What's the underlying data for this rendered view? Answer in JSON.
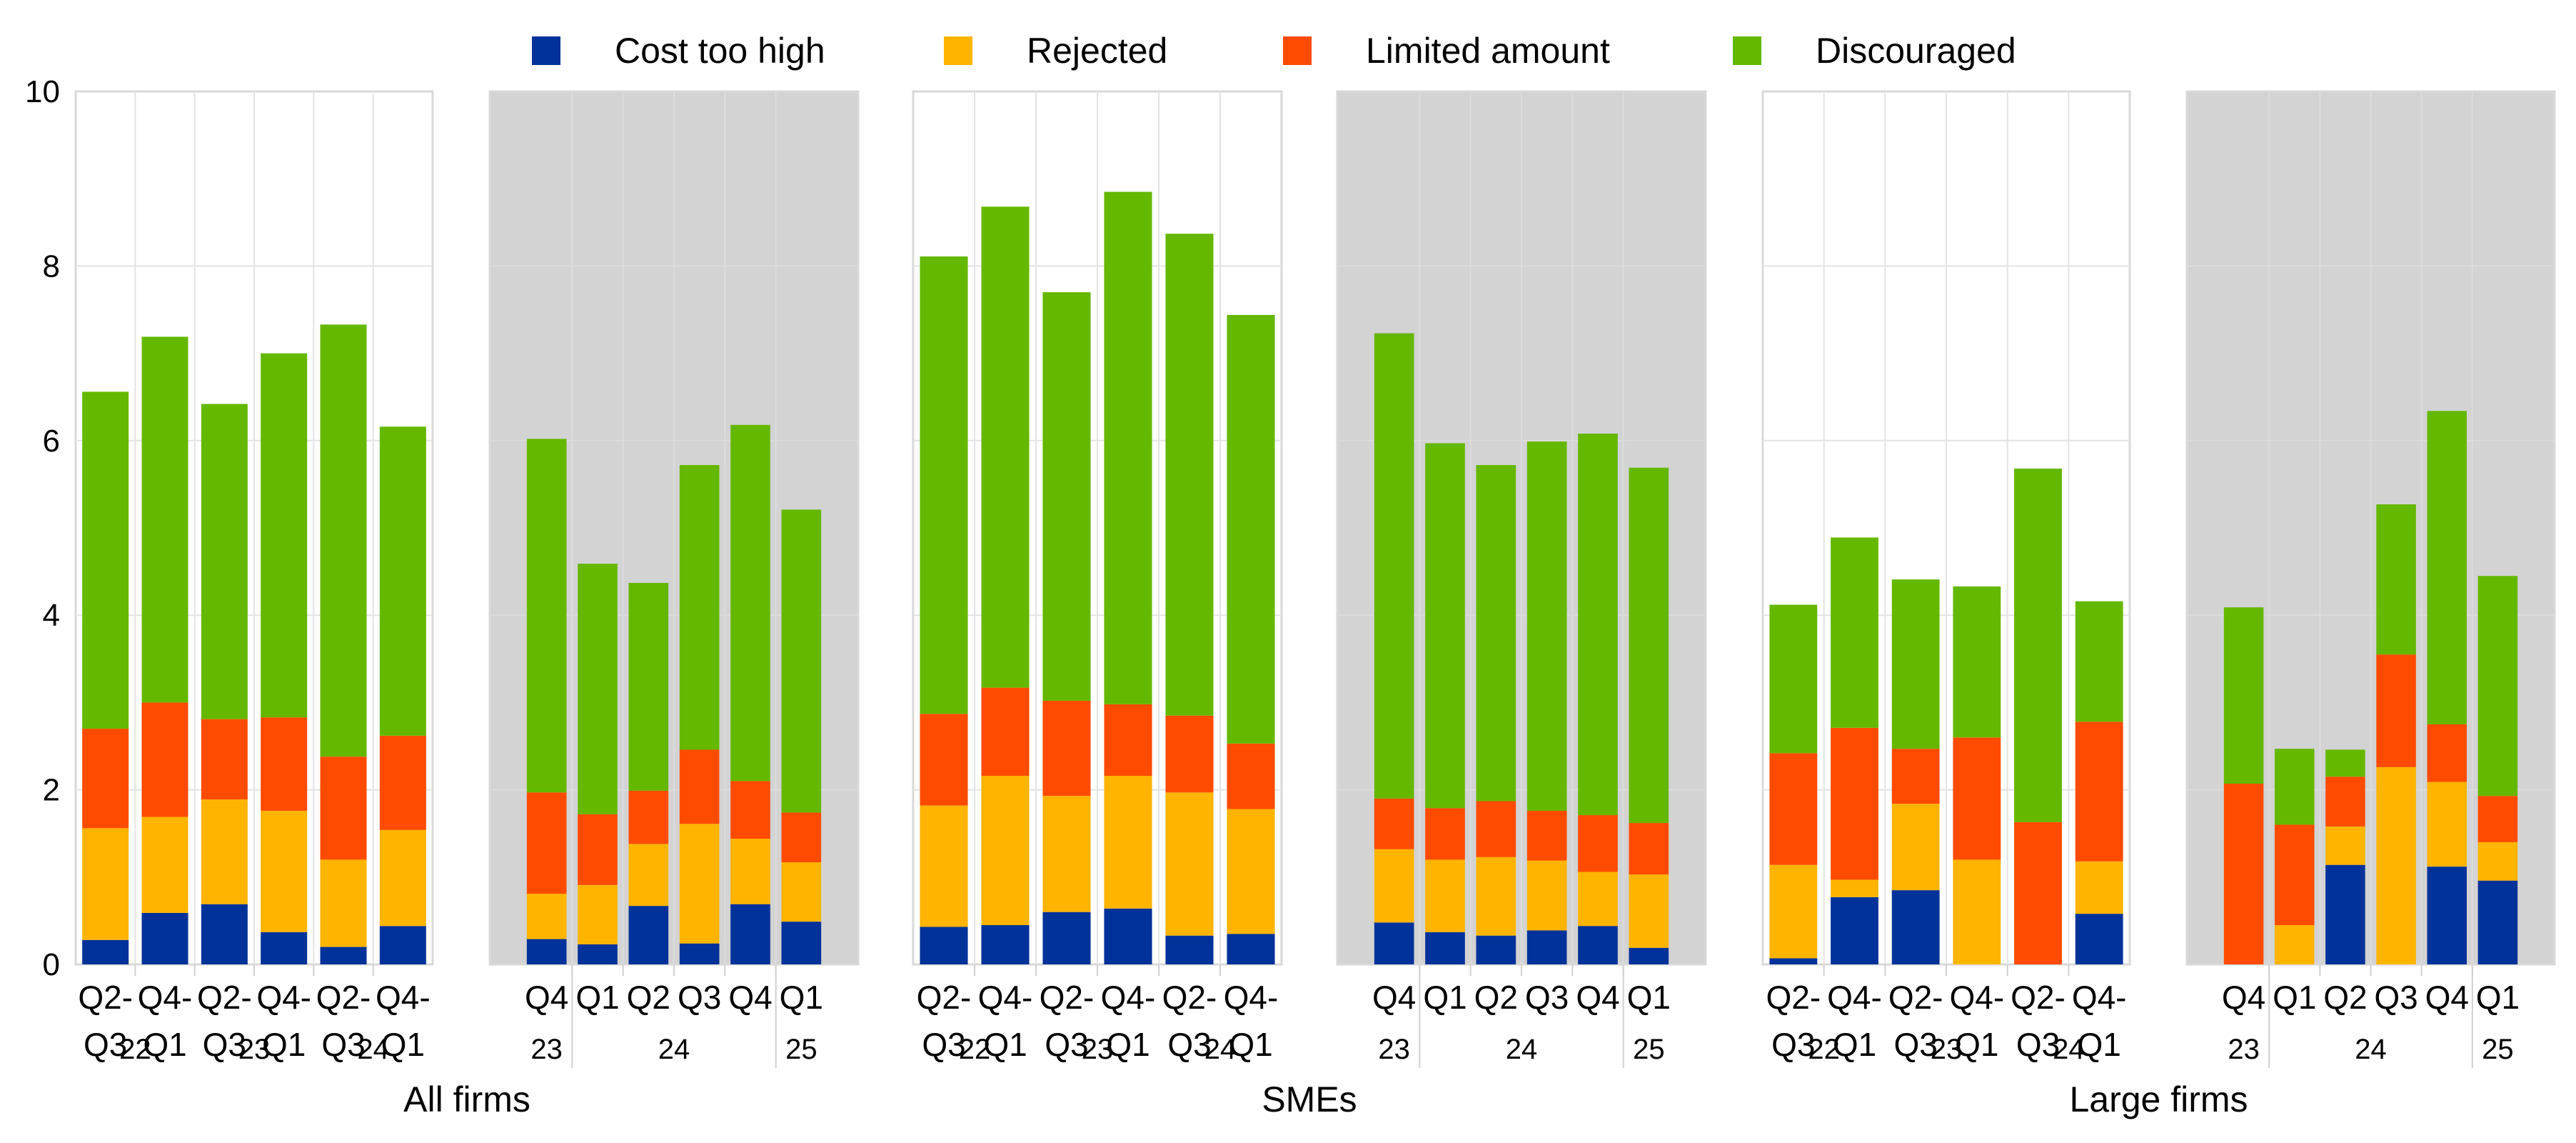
{
  "chart_data": {
    "type": "bar",
    "stacked": true,
    "title": "",
    "ylabel": "",
    "xlabel": "",
    "ylim": [
      0,
      10
    ],
    "yticks": [
      0,
      2,
      4,
      6,
      8,
      10
    ],
    "grid": true,
    "legend_position": "top",
    "series_names": [
      "Cost too high",
      "Rejected",
      "Limited amount",
      "Discouraged"
    ],
    "colors": {
      "Cost too high": "#003299",
      "Rejected": "#FFB400",
      "Limited amount": "#FF4B00",
      "Discouraged": "#65B800"
    },
    "shaded_panel_color": "#d3d3d3",
    "groups": [
      {
        "name": "All firms",
        "panels": [
          {
            "shaded": false,
            "categories": [
              [
                "Q2-",
                "Q3"
              ],
              [
                "Q4-",
                "Q1"
              ],
              [
                "Q2-",
                "Q3"
              ],
              [
                "Q4-",
                "Q1"
              ],
              [
                "Q2-",
                "Q3"
              ],
              [
                "Q4-",
                "Q1"
              ]
            ],
            "year_labels": [
              {
                "label": "22",
                "at": 0.5
              },
              {
                "label": "23",
                "at": 2.5
              },
              {
                "label": "24",
                "at": 4.5
              }
            ],
            "year_separators": [],
            "series": [
              {
                "name": "Cost too high",
                "values": [
                  0.28,
                  0.59,
                  0.69,
                  0.37,
                  0.2,
                  0.44
                ]
              },
              {
                "name": "Rejected",
                "values": [
                  1.28,
                  1.1,
                  1.2,
                  1.39,
                  1.0,
                  1.1
                ]
              },
              {
                "name": "Limited amount",
                "values": [
                  1.14,
                  1.31,
                  0.92,
                  1.07,
                  1.18,
                  1.08
                ]
              },
              {
                "name": "Discouraged",
                "values": [
                  3.86,
                  4.19,
                  3.61,
                  4.17,
                  4.95,
                  3.54
                ]
              }
            ],
            "totals": [
              6.56,
              7.19,
              6.42,
              7.0,
              7.33,
              6.16
            ]
          },
          {
            "shaded": true,
            "categories": [
              [
                "Q4"
              ],
              [
                "Q1"
              ],
              [
                "Q2"
              ],
              [
                "Q3"
              ],
              [
                "Q4"
              ],
              [
                "Q1"
              ]
            ],
            "year_labels": [
              {
                "label": "23",
                "at": 0
              },
              {
                "label": "24",
                "at": 2.5
              },
              {
                "label": "25",
                "at": 5
              }
            ],
            "year_separators": [
              0.5,
              4.5
            ],
            "series": [
              {
                "name": "Cost too high",
                "values": [
                  0.29,
                  0.23,
                  0.67,
                  0.24,
                  0.69,
                  0.49
                ]
              },
              {
                "name": "Rejected",
                "values": [
                  0.52,
                  0.68,
                  0.71,
                  1.37,
                  0.75,
                  0.68
                ]
              },
              {
                "name": "Limited amount",
                "values": [
                  1.16,
                  0.81,
                  0.61,
                  0.85,
                  0.66,
                  0.57
                ]
              },
              {
                "name": "Discouraged",
                "values": [
                  4.05,
                  2.87,
                  2.38,
                  3.26,
                  4.08,
                  3.47
                ]
              }
            ],
            "totals": [
              6.02,
              4.59,
              4.37,
              5.72,
              6.18,
              5.21
            ]
          }
        ]
      },
      {
        "name": "SMEs",
        "panels": [
          {
            "shaded": false,
            "categories": [
              [
                "Q2-",
                "Q3"
              ],
              [
                "Q4-",
                "Q1"
              ],
              [
                "Q2-",
                "Q3"
              ],
              [
                "Q4-",
                "Q1"
              ],
              [
                "Q2-",
                "Q3"
              ],
              [
                "Q4-",
                "Q1"
              ]
            ],
            "year_labels": [
              {
                "label": "22",
                "at": 0.5
              },
              {
                "label": "23",
                "at": 2.5
              },
              {
                "label": "24",
                "at": 4.5
              }
            ],
            "year_separators": [],
            "series": [
              {
                "name": "Cost too high",
                "values": [
                  0.43,
                  0.45,
                  0.6,
                  0.64,
                  0.33,
                  0.35
                ]
              },
              {
                "name": "Rejected",
                "values": [
                  1.39,
                  1.71,
                  1.33,
                  1.52,
                  1.64,
                  1.43
                ]
              },
              {
                "name": "Limited amount",
                "values": [
                  1.05,
                  1.01,
                  1.09,
                  0.82,
                  0.88,
                  0.75
                ]
              },
              {
                "name": "Discouraged",
                "values": [
                  5.24,
                  5.51,
                  4.68,
                  5.87,
                  5.52,
                  4.91
                ]
              }
            ],
            "totals": [
              8.11,
              8.68,
              7.7,
              8.85,
              8.37,
              7.44
            ]
          },
          {
            "shaded": true,
            "categories": [
              [
                "Q4"
              ],
              [
                "Q1"
              ],
              [
                "Q2"
              ],
              [
                "Q3"
              ],
              [
                "Q4"
              ],
              [
                "Q1"
              ]
            ],
            "year_labels": [
              {
                "label": "23",
                "at": 0
              },
              {
                "label": "24",
                "at": 2.5
              },
              {
                "label": "25",
                "at": 5
              }
            ],
            "year_separators": [
              0.5,
              4.5
            ],
            "series": [
              {
                "name": "Cost too high",
                "values": [
                  0.48,
                  0.37,
                  0.33,
                  0.39,
                  0.44,
                  0.19
                ]
              },
              {
                "name": "Rejected",
                "values": [
                  0.84,
                  0.83,
                  0.9,
                  0.8,
                  0.62,
                  0.84
                ]
              },
              {
                "name": "Limited amount",
                "values": [
                  0.58,
                  0.59,
                  0.64,
                  0.57,
                  0.65,
                  0.59
                ]
              },
              {
                "name": "Discouraged",
                "values": [
                  5.33,
                  4.18,
                  3.85,
                  4.23,
                  4.37,
                  4.07
                ]
              }
            ],
            "totals": [
              7.23,
              5.97,
              5.72,
              5.99,
              6.08,
              5.69
            ]
          }
        ]
      },
      {
        "name": "Large firms",
        "panels": [
          {
            "shaded": false,
            "categories": [
              [
                "Q2-",
                "Q3"
              ],
              [
                "Q4-",
                "Q1"
              ],
              [
                "Q2-",
                "Q3"
              ],
              [
                "Q4-",
                "Q1"
              ],
              [
                "Q2-",
                "Q3"
              ],
              [
                "Q4-",
                "Q1"
              ]
            ],
            "year_labels": [
              {
                "label": "22",
                "at": 0.5
              },
              {
                "label": "23",
                "at": 2.5
              },
              {
                "label": "24",
                "at": 4.5
              }
            ],
            "year_separators": [],
            "series": [
              {
                "name": "Cost too high",
                "values": [
                  0.07,
                  0.77,
                  0.85,
                  0.0,
                  0.0,
                  0.58
                ]
              },
              {
                "name": "Rejected",
                "values": [
                  1.07,
                  0.2,
                  0.99,
                  1.2,
                  0.0,
                  0.6
                ]
              },
              {
                "name": "Limited amount",
                "values": [
                  1.28,
                  1.74,
                  0.63,
                  1.4,
                  1.63,
                  1.6
                ]
              },
              {
                "name": "Discouraged",
                "values": [
                  1.7,
                  2.18,
                  1.94,
                  1.73,
                  4.05,
                  1.38
                ]
              }
            ],
            "totals": [
              4.12,
              4.89,
              4.41,
              4.33,
              5.68,
              4.16
            ]
          },
          {
            "shaded": true,
            "categories": [
              [
                "Q4"
              ],
              [
                "Q1"
              ],
              [
                "Q2"
              ],
              [
                "Q3"
              ],
              [
                "Q4"
              ],
              [
                "Q1"
              ]
            ],
            "year_labels": [
              {
                "label": "23",
                "at": 0
              },
              {
                "label": "24",
                "at": 2.5
              },
              {
                "label": "25",
                "at": 5
              }
            ],
            "year_separators": [
              0.5,
              4.5
            ],
            "series": [
              {
                "name": "Cost too high",
                "values": [
                  0.0,
                  0.0,
                  1.14,
                  0.0,
                  1.12,
                  0.96
                ]
              },
              {
                "name": "Rejected",
                "values": [
                  0.0,
                  0.45,
                  0.44,
                  2.26,
                  0.97,
                  0.44
                ]
              },
              {
                "name": "Limited amount",
                "values": [
                  2.07,
                  1.15,
                  0.57,
                  1.29,
                  0.66,
                  0.53
                ]
              },
              {
                "name": "Discouraged",
                "values": [
                  2.02,
                  0.87,
                  0.31,
                  1.72,
                  3.59,
                  2.52
                ]
              }
            ],
            "totals": [
              4.09,
              2.47,
              2.46,
              5.27,
              6.34,
              4.45
            ]
          }
        ]
      }
    ]
  }
}
